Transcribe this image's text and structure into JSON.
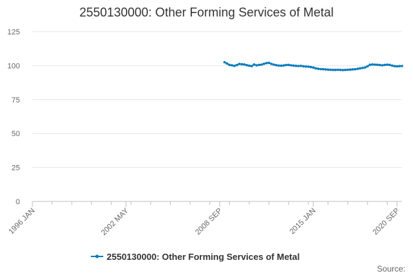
{
  "chart_data": {
    "type": "line",
    "title": "2550130000: Other Forming Services of Metal",
    "xlabel": "",
    "ylabel": "",
    "ylim": [
      0,
      125
    ],
    "y_ticks": [
      0,
      25,
      50,
      75,
      100,
      125
    ],
    "x_range": [
      "1996-01",
      "2021-01"
    ],
    "x_tick_labels": [
      {
        "label": "1996 JAN",
        "date": "1996-01"
      },
      {
        "label": "2002 MAY",
        "date": "2002-05"
      },
      {
        "label": "2008 SEP",
        "date": "2008-09"
      },
      {
        "label": "2015 JAN",
        "date": "2015-01"
      },
      {
        "label": "2020 SEP",
        "date": "2020-09"
      }
    ],
    "grid": "horizontal",
    "legend_position": "bottom-center",
    "series": [
      {
        "name": "2550130000: Other Forming Services of Metal",
        "color": "#0c7cbd",
        "points": [
          [
            "2009-01",
            102.5
          ],
          [
            "2009-03",
            101.5
          ],
          [
            "2009-05",
            100.5
          ],
          [
            "2009-07",
            100.2
          ],
          [
            "2009-09",
            99.8
          ],
          [
            "2009-11",
            100.4
          ],
          [
            "2010-01",
            101.2
          ],
          [
            "2010-03",
            101.0
          ],
          [
            "2010-05",
            100.8
          ],
          [
            "2010-07",
            100.3
          ],
          [
            "2010-09",
            99.9
          ],
          [
            "2010-11",
            99.6
          ],
          [
            "2011-01",
            100.8
          ],
          [
            "2011-03",
            100.2
          ],
          [
            "2011-05",
            100.5
          ],
          [
            "2011-07",
            100.7
          ],
          [
            "2011-09",
            101.3
          ],
          [
            "2011-11",
            101.8
          ],
          [
            "2012-01",
            102.0
          ],
          [
            "2012-03",
            101.2
          ],
          [
            "2012-05",
            100.7
          ],
          [
            "2012-07",
            100.3
          ],
          [
            "2012-09",
            100.0
          ],
          [
            "2012-11",
            99.9
          ],
          [
            "2013-01",
            100.1
          ],
          [
            "2013-03",
            100.4
          ],
          [
            "2013-05",
            100.5
          ],
          [
            "2013-07",
            100.2
          ],
          [
            "2013-09",
            100.0
          ],
          [
            "2013-11",
            99.8
          ],
          [
            "2014-01",
            99.7
          ],
          [
            "2014-03",
            99.8
          ],
          [
            "2014-05",
            99.5
          ],
          [
            "2014-07",
            99.3
          ],
          [
            "2014-09",
            99.2
          ],
          [
            "2014-11",
            98.9
          ],
          [
            "2015-01",
            98.6
          ],
          [
            "2015-03",
            98.0
          ],
          [
            "2015-05",
            97.6
          ],
          [
            "2015-07",
            97.4
          ],
          [
            "2015-09",
            97.3
          ],
          [
            "2015-11",
            97.2
          ],
          [
            "2016-01",
            97.0
          ],
          [
            "2016-03",
            96.9
          ],
          [
            "2016-05",
            96.8
          ],
          [
            "2016-07",
            96.8
          ],
          [
            "2016-09",
            96.9
          ],
          [
            "2016-11",
            96.8
          ],
          [
            "2017-01",
            96.7
          ],
          [
            "2017-03",
            96.8
          ],
          [
            "2017-05",
            96.9
          ],
          [
            "2017-07",
            97.0
          ],
          [
            "2017-09",
            97.2
          ],
          [
            "2017-11",
            97.3
          ],
          [
            "2018-01",
            97.6
          ],
          [
            "2018-03",
            98.0
          ],
          [
            "2018-05",
            98.3
          ],
          [
            "2018-07",
            98.6
          ],
          [
            "2018-09",
            99.5
          ],
          [
            "2018-11",
            100.6
          ],
          [
            "2019-01",
            100.8
          ],
          [
            "2019-03",
            100.7
          ],
          [
            "2019-05",
            100.6
          ],
          [
            "2019-07",
            100.4
          ],
          [
            "2019-09",
            100.2
          ],
          [
            "2019-11",
            100.5
          ],
          [
            "2020-01",
            100.7
          ],
          [
            "2020-03",
            100.5
          ],
          [
            "2020-05",
            100.0
          ],
          [
            "2020-07",
            99.6
          ],
          [
            "2020-09",
            99.5
          ],
          [
            "2020-11",
            99.6
          ],
          [
            "2021-01",
            99.7
          ]
        ]
      }
    ]
  },
  "credits": "Source:"
}
